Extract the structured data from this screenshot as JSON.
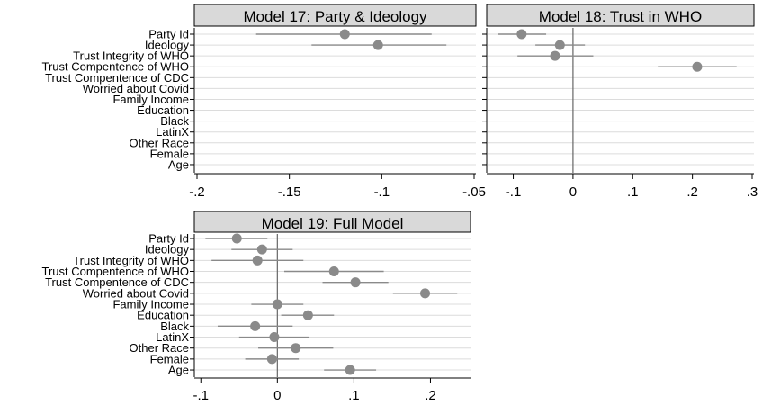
{
  "variables": [
    "Party Id",
    "Ideology",
    "Trust Integrity of WHO",
    "Trust Compentence of WHO",
    "Trust Compentence of CDC",
    "Worried about Covid",
    "Family Income",
    "Education",
    "Black",
    "LatinX",
    "Other Race",
    "Female",
    "Age"
  ],
  "colors": {
    "point": "#8a8a8a",
    "whisker": "#8a8a8a",
    "header_bg": "#d9d9d9",
    "grid": "#dcdcdc",
    "zero_line": "#666666"
  },
  "chart_data": [
    {
      "type": "scatter",
      "title": "Model 17: Party & Ideology",
      "xlim": [
        -0.2,
        -0.05
      ],
      "xticks": [
        -0.2,
        -0.15,
        -0.1,
        -0.05
      ],
      "xtick_labels": [
        "-.2",
        "-.15",
        "-.1",
        "-.05"
      ],
      "points": [
        {
          "variable": "Party Id",
          "estimate": -0.12,
          "lower": -0.168,
          "upper": -0.073
        },
        {
          "variable": "Ideology",
          "estimate": -0.102,
          "lower": -0.138,
          "upper": -0.065
        }
      ]
    },
    {
      "type": "scatter",
      "title": "Model 18: Trust in WHO",
      "xlim": [
        -0.14,
        0.3
      ],
      "xticks": [
        -0.1,
        0,
        0.1,
        0.2,
        0.3
      ],
      "xtick_labels": [
        "-.1",
        "0",
        ".1",
        ".2",
        ".3"
      ],
      "points": [
        {
          "variable": "Party Id",
          "estimate": -0.086,
          "lower": -0.126,
          "upper": -0.045
        },
        {
          "variable": "Ideology",
          "estimate": -0.022,
          "lower": -0.063,
          "upper": 0.02
        },
        {
          "variable": "Trust Integrity of WHO",
          "estimate": -0.03,
          "lower": -0.093,
          "upper": 0.034
        },
        {
          "variable": "Trust Compentence of WHO",
          "estimate": 0.208,
          "lower": 0.142,
          "upper": 0.274
        }
      ]
    },
    {
      "type": "scatter",
      "title": "Model 19: Full Model",
      "xlim": [
        -0.105,
        0.25
      ],
      "xticks": [
        -0.1,
        0,
        0.1,
        0.2
      ],
      "xtick_labels": [
        "-.1",
        "0",
        ".1",
        ".2"
      ],
      "points": [
        {
          "variable": "Party Id",
          "estimate": -0.053,
          "lower": -0.094,
          "upper": -0.013
        },
        {
          "variable": "Ideology",
          "estimate": -0.02,
          "lower": -0.06,
          "upper": 0.02
        },
        {
          "variable": "Trust Integrity of WHO",
          "estimate": -0.026,
          "lower": -0.086,
          "upper": 0.034
        },
        {
          "variable": "Trust Compentence of WHO",
          "estimate": 0.074,
          "lower": 0.009,
          "upper": 0.139
        },
        {
          "variable": "Trust Compentence of CDC",
          "estimate": 0.102,
          "lower": 0.059,
          "upper": 0.145
        },
        {
          "variable": "Worried about Covid",
          "estimate": 0.193,
          "lower": 0.151,
          "upper": 0.235
        },
        {
          "variable": "Family Income",
          "estimate": 0.0,
          "lower": -0.034,
          "upper": 0.034
        },
        {
          "variable": "Education",
          "estimate": 0.04,
          "lower": 0.005,
          "upper": 0.074
        },
        {
          "variable": "Black",
          "estimate": -0.029,
          "lower": -0.078,
          "upper": 0.02
        },
        {
          "variable": "LatinX",
          "estimate": -0.004,
          "lower": -0.05,
          "upper": 0.042
        },
        {
          "variable": "Other Race",
          "estimate": 0.024,
          "lower": -0.025,
          "upper": 0.073
        },
        {
          "variable": "Female",
          "estimate": -0.007,
          "lower": -0.042,
          "upper": 0.028
        },
        {
          "variable": "Age",
          "estimate": 0.095,
          "lower": 0.061,
          "upper": 0.129
        }
      ]
    }
  ]
}
